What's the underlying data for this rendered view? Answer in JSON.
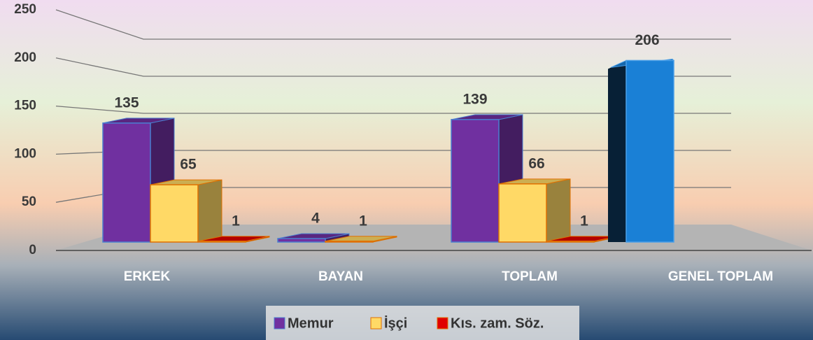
{
  "chart_data": {
    "type": "bar3d",
    "categories": [
      "ERKEK",
      "BAYAN",
      "TOPLAM",
      "GENEL TOPLAM"
    ],
    "series": [
      {
        "name": "Memur",
        "color": "#7030a0",
        "values": [
          135,
          4,
          139,
          null
        ]
      },
      {
        "name": "İşçi",
        "color": "#ffd966",
        "values": [
          65,
          1,
          66,
          null
        ]
      },
      {
        "name": "Kıs. zam. Söz.",
        "color": "#e00000",
        "values": [
          1,
          null,
          1,
          null
        ]
      }
    ],
    "total": {
      "value": 206,
      "color": "#1a80d6"
    },
    "ylim": [
      0,
      250
    ],
    "yticks": [
      0,
      50,
      100,
      150,
      200,
      250
    ],
    "grid": true,
    "legend": "bottom"
  }
}
